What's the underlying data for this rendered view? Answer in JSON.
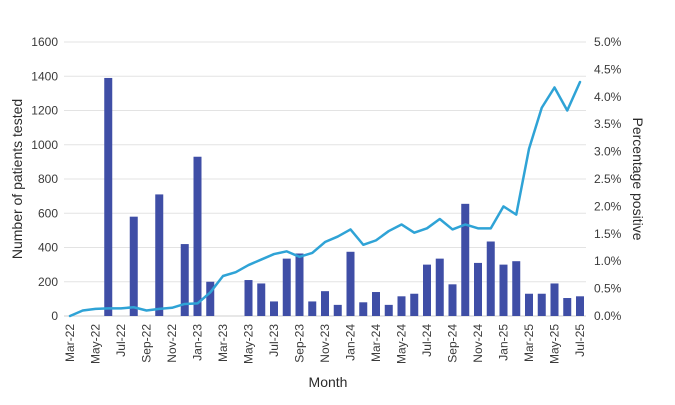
{
  "chart_data": {
    "type": "bar+line",
    "title": "",
    "xlabel": "Month",
    "ylabel": "Number of patients tested",
    "y2label": "Percentage positive",
    "ylim": [
      0,
      1600
    ],
    "y2lim": [
      0,
      5.0
    ],
    "yticks": [
      "0",
      "200",
      "400",
      "600",
      "800",
      "1000",
      "1200",
      "1400",
      "1600"
    ],
    "y2ticks": [
      "0.0%",
      "0.5%",
      "1.0%",
      "1.5%",
      "2.0%",
      "2.5%",
      "3.0%",
      "3.5%",
      "4.0%",
      "4.5%",
      "5.0%"
    ],
    "grid": true,
    "legend": "none",
    "x_tick_labels": [
      "Mar-22",
      "May-22",
      "Jul-22",
      "Sep-22",
      "Nov-22",
      "Jan-23",
      "Mar-23",
      "May-23",
      "Jul-23",
      "Sep-23",
      "Nov-23",
      "Jan-24",
      "Mar-24",
      "May-24",
      "Jul-24",
      "Sep-24",
      "Nov-24",
      "Jan-25",
      "Mar-25",
      "May-25",
      "Jul-25"
    ],
    "months": [
      "Mar-22",
      "Apr-22",
      "May-22",
      "Jun-22",
      "Jul-22",
      "Aug-22",
      "Sep-22",
      "Oct-22",
      "Nov-22",
      "Dec-22",
      "Jan-23",
      "Feb-23",
      "Mar-23",
      "Apr-23",
      "May-23",
      "Jun-23",
      "Jul-23",
      "Aug-23",
      "Sep-23",
      "Oct-23",
      "Nov-23",
      "Dec-23",
      "Jan-24",
      "Feb-24",
      "Mar-24",
      "Apr-24",
      "May-24",
      "Jun-24",
      "Jul-24",
      "Aug-24",
      "Sep-24",
      "Oct-24",
      "Nov-24",
      "Dec-24",
      "Jan-25",
      "Feb-25",
      "Mar-25",
      "Apr-25",
      "May-25",
      "Jun-25",
      "Jul-25"
    ],
    "series": [
      {
        "type": "bar",
        "axis": "left",
        "color": "#3f4ea6",
        "values": [
          0,
          0,
          0,
          1390,
          0,
          580,
          0,
          710,
          0,
          420,
          930,
          200,
          0,
          0,
          210,
          190,
          85,
          335,
          365,
          85,
          145,
          65,
          375,
          80,
          140,
          65,
          115,
          130,
          300,
          335,
          185,
          655,
          310,
          435,
          300,
          320,
          130,
          130,
          190,
          105,
          115
        ]
      },
      {
        "type": "line",
        "axis": "right",
        "color": "#2fa3d6",
        "values": [
          0.0,
          0.1,
          0.13,
          0.14,
          0.14,
          0.16,
          0.1,
          0.13,
          0.15,
          0.22,
          0.23,
          0.43,
          0.73,
          0.8,
          0.93,
          1.03,
          1.13,
          1.18,
          1.08,
          1.15,
          1.35,
          1.45,
          1.58,
          1.3,
          1.38,
          1.55,
          1.67,
          1.52,
          1.6,
          1.77,
          1.58,
          1.67,
          1.6,
          1.6,
          2.0,
          1.85,
          3.05,
          3.8,
          4.17,
          3.75,
          4.27
        ]
      }
    ]
  }
}
